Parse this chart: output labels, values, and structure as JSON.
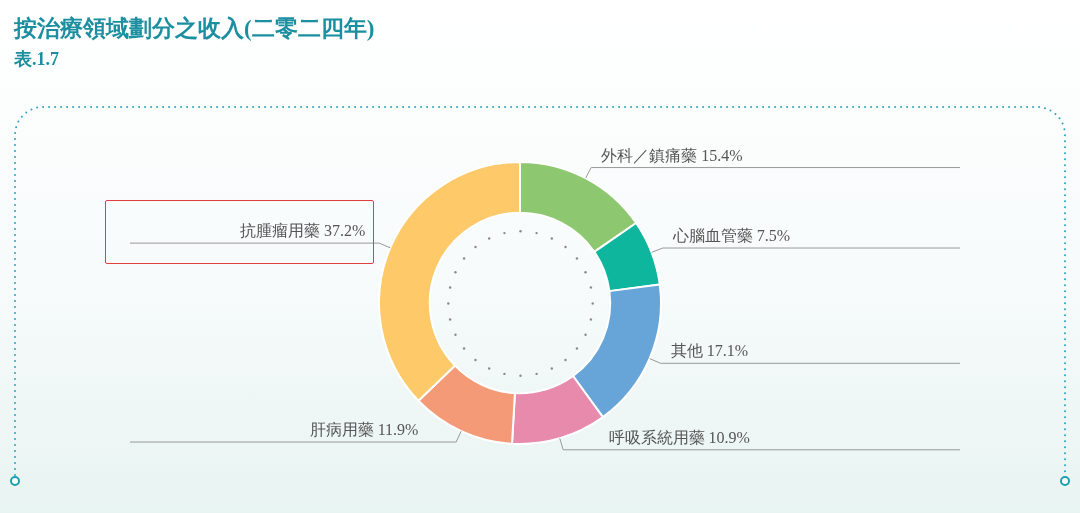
{
  "chart_data": {
    "type": "donut",
    "title": "按治療領域劃分之收入(二零二四年)",
    "subtitle": "表.1.7",
    "categories": [
      "外科／鎮痛藥",
      "心腦血管藥",
      "其他",
      "呼吸系統用藥",
      "肝病用藥",
      "抗腫瘤用藥"
    ],
    "values": [
      15.4,
      7.5,
      17.1,
      10.9,
      11.9,
      37.2
    ],
    "value_labels": [
      "15.4%",
      "7.5%",
      "17.1%",
      "10.9%",
      "11.9%",
      "37.2%"
    ],
    "colors": [
      "#8dc76f",
      "#0fb69e",
      "#67a5d8",
      "#e78aab",
      "#f49a77",
      "#fec969"
    ]
  }
}
